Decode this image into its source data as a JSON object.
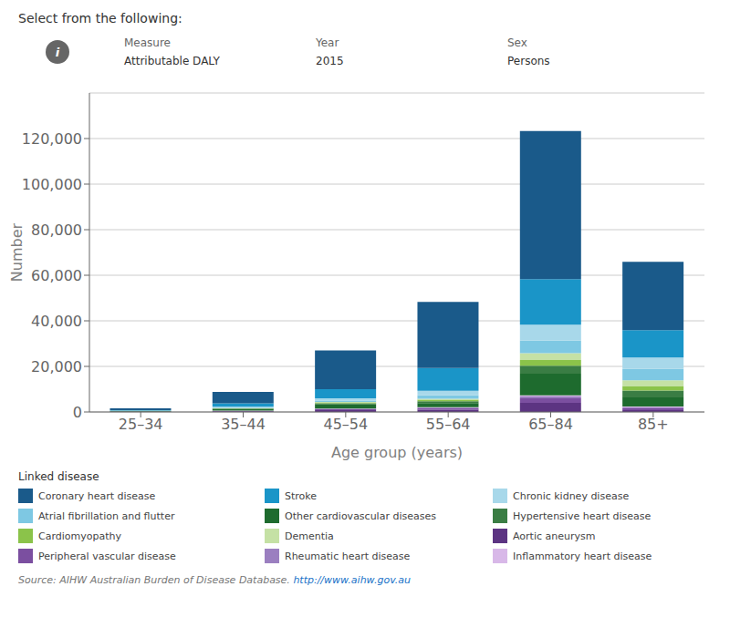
{
  "chart_data": {
    "type": "bar",
    "stacked": true,
    "title": "Select from the following:",
    "annotations": [
      "i",
      "Measure",
      "Attributable DALY",
      "Year",
      "2015",
      "Sex",
      "Persons",
      "Source: AIHW Australian Burden of Disease Database. ",
      "http://www.aihw.gov.au"
    ],
    "x_label": "Age group (years)",
    "y_label": "Number",
    "categories": [
      "25–34",
      "35–44",
      "45–54",
      "55–64",
      "65–84",
      "85+"
    ],
    "series": [
      {
        "name": "Aortic aneurysm",
        "color": "#5c3482",
        "values": [
          100,
          300,
          800,
          1000,
          4000,
          800
        ]
      },
      {
        "name": "Peripheral vascular disease",
        "color": "#7b4fa0",
        "values": [
          50,
          150,
          400,
          600,
          2000,
          800
        ]
      },
      {
        "name": "Rheumatic heart disease",
        "color": "#9b7fc0",
        "values": [
          20,
          80,
          200,
          300,
          800,
          500
        ]
      },
      {
        "name": "Inflammatory heart disease",
        "color": "#d8b8e8",
        "values": [
          20,
          70,
          150,
          200,
          500,
          300
        ]
      },
      {
        "name": "Other cardiovascular diseases",
        "color": "#1e6b2e",
        "values": [
          200,
          700,
          1800,
          1800,
          9500,
          4000
        ]
      },
      {
        "name": "Hypertensive heart disease",
        "color": "#3a7d44",
        "values": [
          50,
          200,
          500,
          800,
          3500,
          3000
        ]
      },
      {
        "name": "Cardiomyopathy",
        "color": "#8bc34a",
        "values": [
          50,
          150,
          400,
          700,
          2500,
          2000
        ]
      },
      {
        "name": "Dementia",
        "color": "#c5e1a5",
        "values": [
          10,
          50,
          150,
          400,
          3000,
          2500
        ]
      },
      {
        "name": "Atrial fibrillation and flutter",
        "color": "#7ec8e3",
        "values": [
          50,
          200,
          600,
          1500,
          5500,
          5000
        ]
      },
      {
        "name": "Chronic kidney disease",
        "color": "#a8d8ea",
        "values": [
          100,
          400,
          1000,
          2000,
          7000,
          5000
        ]
      },
      {
        "name": "Stroke",
        "color": "#1a95c8",
        "values": [
          200,
          1500,
          4000,
          10000,
          20000,
          12000
        ]
      },
      {
        "name": "Coronary heart disease",
        "color": "#1a5a8a",
        "values": [
          800,
          5000,
          17000,
          29000,
          65000,
          30000
        ]
      }
    ],
    "legend": {
      "title": "Linked disease",
      "order": [
        "Coronary heart disease",
        "Stroke",
        "Chronic kidney disease",
        "Atrial fibrillation and flutter",
        "Other cardiovascular diseases",
        "Hypertensive heart disease",
        "Cardiomyopathy",
        "Dementia",
        "Aortic aneurysm",
        "Peripheral vascular disease",
        "Rheumatic heart disease",
        "Inflammatory heart disease"
      ]
    },
    "ylim": [
      0,
      140000
    ],
    "yticks": [
      0,
      {
        "value": 20000,
        "label": "20,000"
      },
      {
        "value": 40000,
        "label": "40,000"
      },
      {
        "value": 60000,
        "label": "60,000"
      },
      {
        "value": 80000,
        "label": "80,000"
      },
      {
        "value": 100000,
        "label": "100,000"
      },
      {
        "value": 120000,
        "label": "120,000"
      }
    ],
    "grid": true
  }
}
